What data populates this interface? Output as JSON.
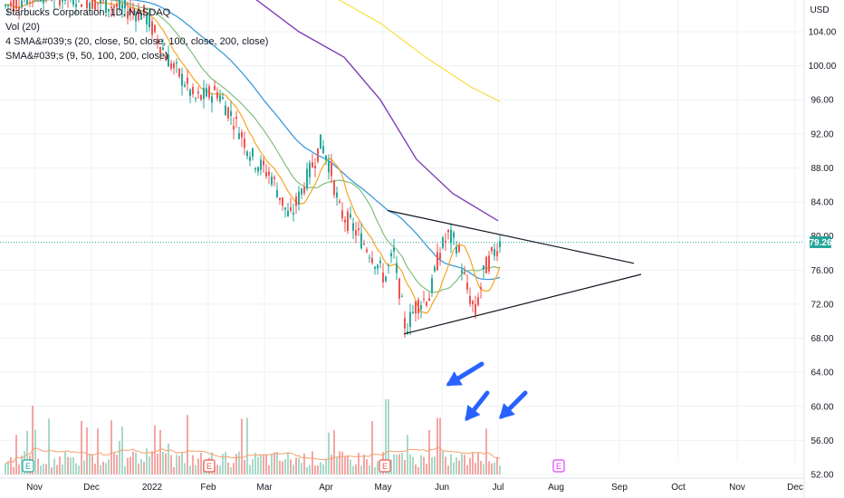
{
  "legend": {
    "title": "Starbucks Corporation, 1D, NASDAQ",
    "vol": "Vol (20)",
    "sma4": "4 SMA&#039;s (20, close, 50, close, 100, close, 200, close)",
    "sma_short": "SMA&#039;s (9, 50, 100, 200, close)"
  },
  "price_badge": "79.26",
  "colors": {
    "up": "#26a69a",
    "down": "#ef5350",
    "sma9": "#f5a623",
    "sma20": "#7fbf7f",
    "sma50": "#3f9ad9",
    "sma100": "#7e3fb7",
    "sma200": "#f7e35a",
    "arrow": "#2962ff",
    "earnings": "#26a69a",
    "earnings_down": "#ef5350",
    "earnings_future": "#e040fb"
  },
  "earnings_markers": [
    {
      "label": "E",
      "date": "Nov"
    },
    {
      "label": "E",
      "date": "Feb"
    },
    {
      "label": "E",
      "date": "May"
    },
    {
      "label": "E",
      "date": "Aug"
    }
  ],
  "chart_data": {
    "type": "candlestick",
    "title": "Starbucks Corporation, 1D, NASDAQ",
    "ylabel": "USD",
    "current_price": 79.26,
    "y_ticks": [
      "104.00",
      "100.00",
      "96.00",
      "92.00",
      "88.00",
      "84.00",
      "80.00",
      "76.00",
      "72.00",
      "68.00",
      "64.00",
      "60.00",
      "56.00",
      "52.00"
    ],
    "x_ticks": [
      "Nov",
      "Dec",
      "2022",
      "Feb",
      "Mar",
      "Apr",
      "May",
      "Jun",
      "Jul",
      "Aug",
      "Sep",
      "Oct",
      "Nov",
      "Dec"
    ],
    "ylim": [
      52,
      108
    ],
    "trend_lines": [
      {
        "name": "upper",
        "points": [
          [
            0,
            83.0
          ],
          [
            1,
            76.8
          ]
        ]
      },
      {
        "name": "lower",
        "points": [
          [
            0,
            68.5
          ],
          [
            1,
            75.5
          ]
        ]
      }
    ],
    "sma_series": [
      {
        "name": "SMA 9"
      },
      {
        "name": "SMA 20"
      },
      {
        "name": "SMA 50"
      },
      {
        "name": "SMA 100"
      },
      {
        "name": "SMA 200"
      }
    ]
  }
}
